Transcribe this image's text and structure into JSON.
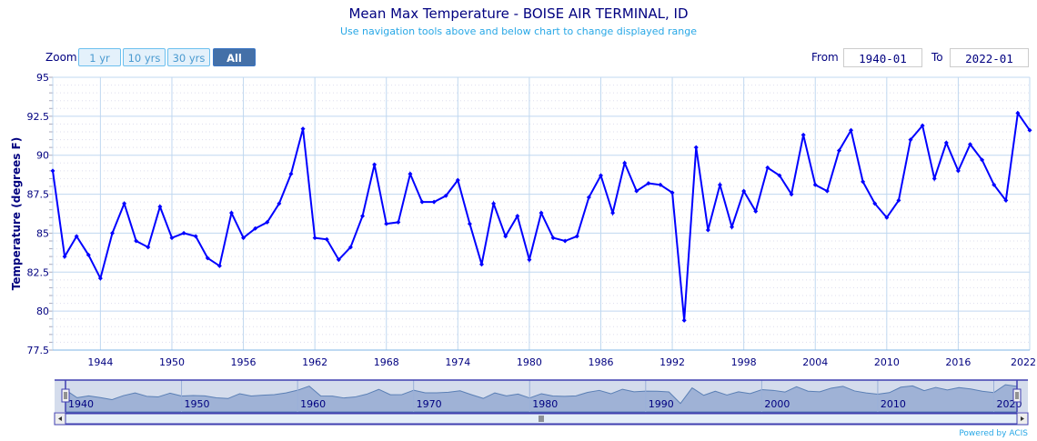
{
  "header": {
    "title": "Mean Max Temperature - BOISE AIR TERMINAL, ID",
    "subtitle": "Use navigation tools above and below chart to change displayed range"
  },
  "zoom": {
    "label": "Zoom",
    "buttons": [
      "1 yr",
      "10 yrs",
      "30 yrs",
      "All"
    ],
    "selected": "All"
  },
  "range": {
    "from_label": "From",
    "from_value": "1940-01",
    "to_label": "To",
    "to_value": "2022-01"
  },
  "credit": "Powered by ACIS",
  "colors": {
    "series": "#0000ff",
    "text": "#000080",
    "grid": "#c0d8f0",
    "navigator_fill": "#9fb2d6"
  },
  "chart_data": {
    "type": "line",
    "title": "Mean Max Temperature - BOISE AIR TERMINAL, ID",
    "xlabel": "",
    "ylabel": "Temperature (degrees F)",
    "xlim": [
      1940,
      2022
    ],
    "ylim": [
      77.5,
      95
    ],
    "y_ticks": [
      "77.5",
      "80",
      "82.5",
      "85",
      "87.5",
      "90",
      "92.5",
      "95"
    ],
    "x_ticks": [
      "1944",
      "1950",
      "1956",
      "1962",
      "1968",
      "1974",
      "1980",
      "1986",
      "1992",
      "1998",
      "2004",
      "2010",
      "2016",
      "2022"
    ],
    "navigator_ticks": [
      "1940",
      "1950",
      "1960",
      "1970",
      "1980",
      "1990",
      "2000",
      "2010",
      "2020"
    ],
    "grid": true,
    "x": [
      1940,
      1941,
      1942,
      1943,
      1944,
      1945,
      1946,
      1947,
      1948,
      1949,
      1950,
      1951,
      1952,
      1953,
      1954,
      1955,
      1956,
      1957,
      1958,
      1959,
      1960,
      1961,
      1962,
      1963,
      1964,
      1965,
      1966,
      1967,
      1968,
      1969,
      1970,
      1971,
      1972,
      1973,
      1974,
      1975,
      1976,
      1977,
      1978,
      1979,
      1980,
      1981,
      1982,
      1983,
      1984,
      1985,
      1986,
      1987,
      1988,
      1989,
      1990,
      1991,
      1992,
      1993,
      1994,
      1995,
      1996,
      1997,
      1998,
      1999,
      2000,
      2001,
      2002,
      2003,
      2004,
      2005,
      2006,
      2007,
      2008,
      2009,
      2010,
      2011,
      2012,
      2013,
      2014,
      2015,
      2016,
      2017,
      2018,
      2019,
      2020,
      2021,
      2022
    ],
    "values": [
      89.0,
      83.5,
      84.8,
      83.6,
      82.1,
      85.0,
      86.9,
      84.5,
      84.1,
      86.7,
      84.7,
      85.0,
      84.8,
      83.4,
      82.9,
      86.3,
      84.7,
      85.3,
      85.7,
      86.9,
      88.8,
      91.7,
      84.7,
      84.6,
      83.3,
      84.1,
      86.1,
      89.4,
      85.6,
      85.7,
      88.8,
      87.0,
      87.0,
      87.4,
      88.4,
      85.6,
      83.0,
      86.9,
      84.8,
      86.1,
      83.3,
      86.3,
      84.7,
      84.5,
      84.8,
      87.3,
      88.7,
      86.3,
      89.5,
      87.7,
      88.2,
      88.1,
      87.6,
      79.4,
      90.5,
      85.2,
      88.1,
      85.4,
      87.7,
      86.4,
      89.2,
      88.7,
      87.5,
      91.3,
      88.1,
      87.7,
      90.3,
      91.6,
      88.3,
      86.9,
      86.0,
      87.1,
      91.0,
      91.9,
      88.5,
      90.8,
      89.0,
      90.7,
      89.7,
      88.1,
      87.1,
      92.7,
      91.6
    ]
  }
}
